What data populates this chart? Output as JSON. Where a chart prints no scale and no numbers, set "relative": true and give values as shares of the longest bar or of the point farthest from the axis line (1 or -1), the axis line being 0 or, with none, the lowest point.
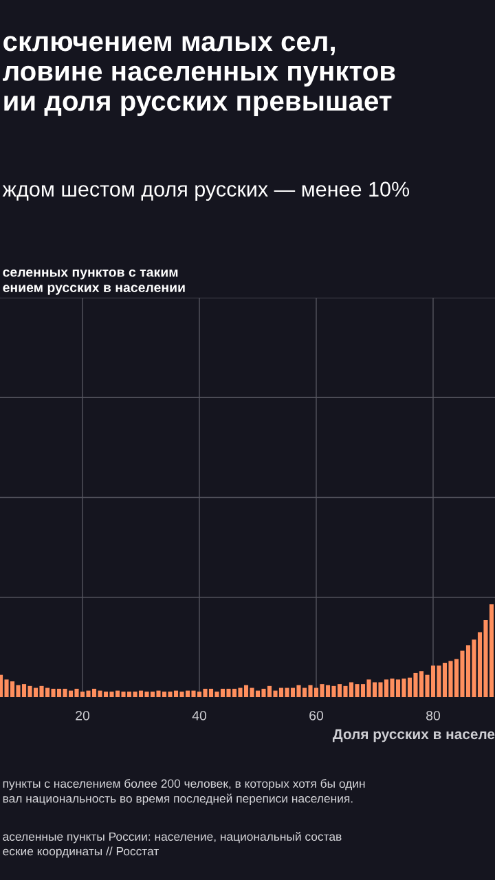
{
  "chart_data": {
    "type": "bar",
    "relative": true,
    "title": "сключением малых сел,\nловине населенных пунктов\nии доля русских превышает",
    "subtitle": "ждом шестом доля русских — менее 10%",
    "xlabel": "Доля русских в населе",
    "x": [
      6,
      7,
      8,
      9,
      10,
      11,
      12,
      13,
      14,
      15,
      16,
      17,
      18,
      19,
      20,
      21,
      22,
      23,
      24,
      25,
      26,
      27,
      28,
      29,
      30,
      31,
      32,
      33,
      34,
      35,
      36,
      37,
      38,
      39,
      40,
      41,
      42,
      43,
      44,
      45,
      46,
      47,
      48,
      49,
      50,
      51,
      52,
      53,
      54,
      55,
      56,
      57,
      58,
      59,
      60,
      61,
      62,
      63,
      64,
      65,
      66,
      67,
      68,
      69,
      70,
      71,
      72,
      73,
      74,
      75,
      76,
      77,
      78,
      79,
      80,
      81,
      82,
      83,
      84,
      85,
      86,
      87,
      88,
      89,
      90
    ],
    "values": [
      0.24,
      0.19,
      0.17,
      0.13,
      0.14,
      0.12,
      0.1,
      0.12,
      0.1,
      0.09,
      0.09,
      0.09,
      0.07,
      0.09,
      0.06,
      0.07,
      0.09,
      0.07,
      0.06,
      0.06,
      0.07,
      0.06,
      0.06,
      0.06,
      0.07,
      0.06,
      0.06,
      0.07,
      0.06,
      0.06,
      0.07,
      0.06,
      0.07,
      0.07,
      0.06,
      0.09,
      0.09,
      0.06,
      0.09,
      0.09,
      0.09,
      0.1,
      0.13,
      0.1,
      0.07,
      0.09,
      0.12,
      0.07,
      0.1,
      0.1,
      0.1,
      0.13,
      0.1,
      0.13,
      0.1,
      0.14,
      0.13,
      0.12,
      0.14,
      0.12,
      0.16,
      0.14,
      0.14,
      0.19,
      0.16,
      0.16,
      0.19,
      0.2,
      0.19,
      0.2,
      0.21,
      0.26,
      0.28,
      0.24,
      0.34,
      0.34,
      0.37,
      0.39,
      0.41,
      0.5,
      0.56,
      0.62,
      0.7,
      0.83,
      1
    ],
    "color": "#ff8f5e",
    "xlim": [
      5.88,
      90.59
    ],
    "xticks": [
      20,
      40,
      60,
      80
    ],
    "grid": true,
    "tick_labels": "x",
    "annotations": [
      "селенных пунктов с таким\nением русских в населении",
      "пункты с населением более 200 человек, в которых хотя бы один\nвал национальность во время последней переписи населения.",
      "аселенные пункты России: население, национальный состав\nеские координаты // Росстат"
    ]
  }
}
